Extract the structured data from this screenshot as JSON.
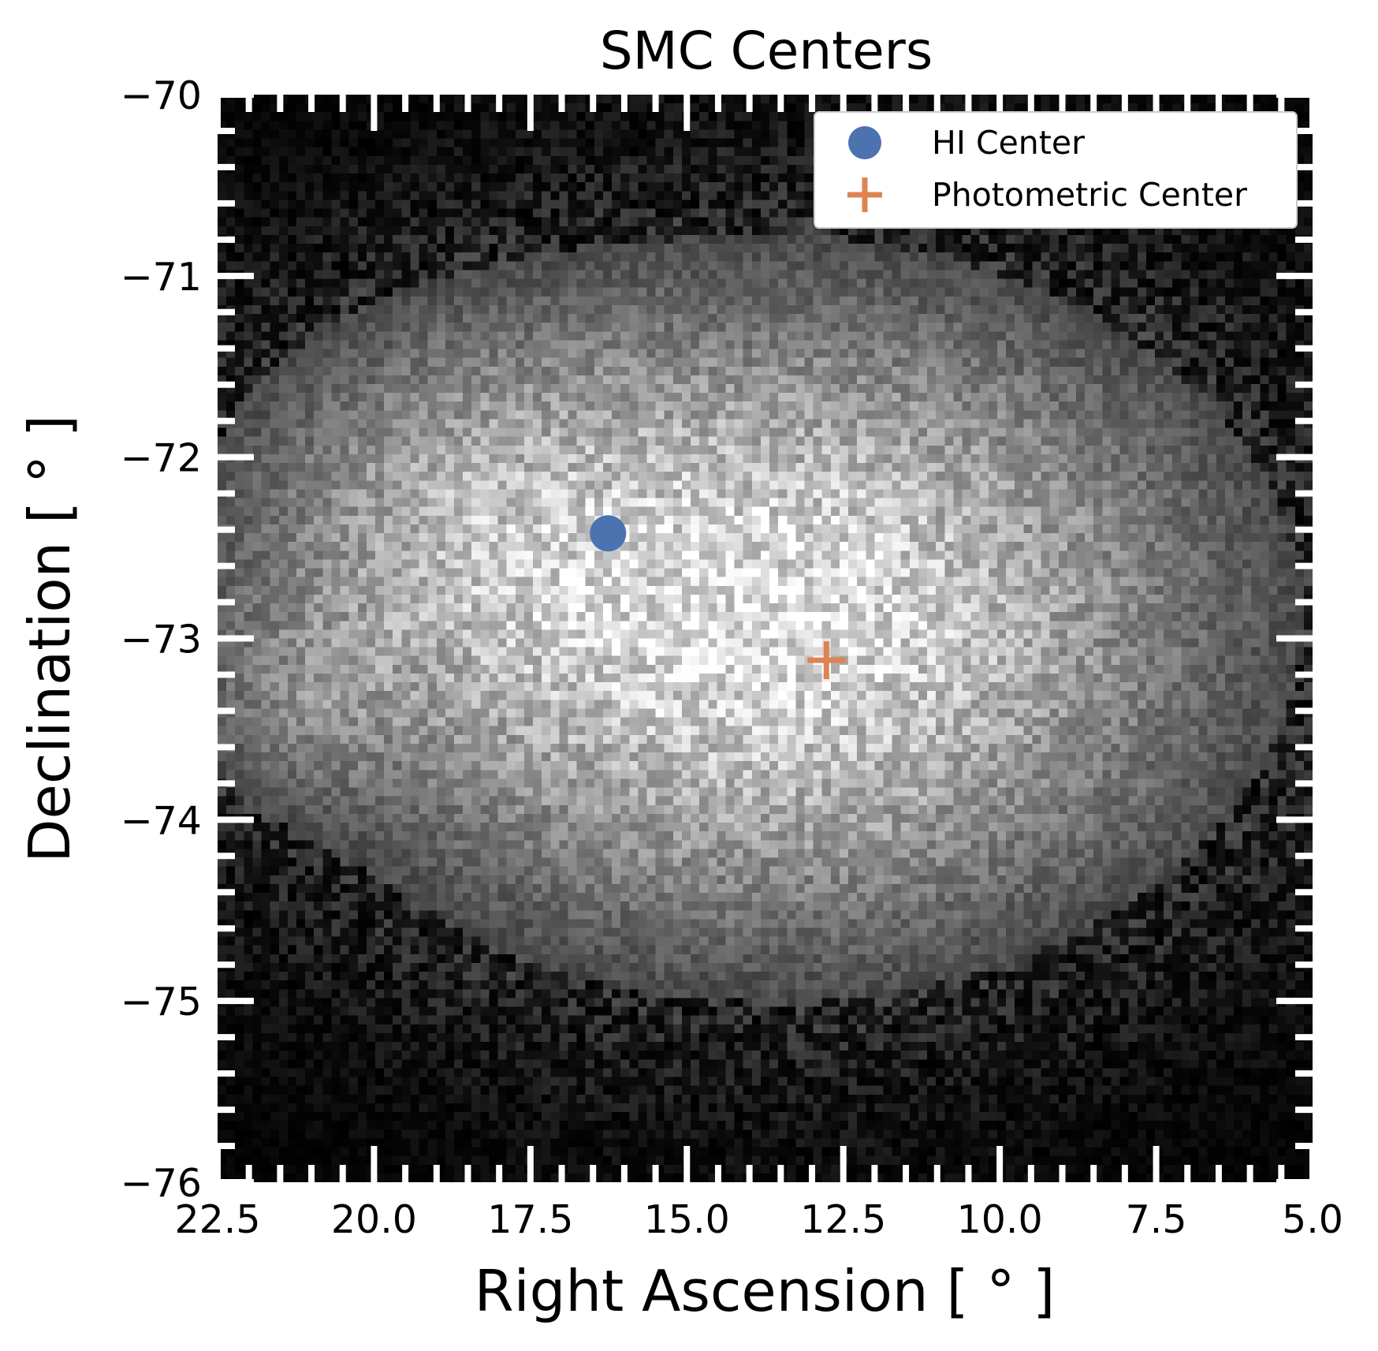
{
  "chart_data": {
    "type": "heatmap",
    "title": "SMC Centers",
    "xlabel": "Right Ascension [$^\\circ$]",
    "xlabel_display": "Right Ascension [ ° ]",
    "ylabel_display": "Declination [ ° ]",
    "xlim": [
      22.5,
      5.0
    ],
    "ylim": [
      -76,
      -70
    ],
    "x_ticks": [
      "22.5",
      "20.0",
      "17.5",
      "15.0",
      "12.5",
      "10.0",
      "7.5",
      "5.0"
    ],
    "x_tick_values": [
      22.5,
      20.0,
      17.5,
      15.0,
      12.5,
      10.0,
      7.5,
      5.0
    ],
    "y_ticks": [
      "−70",
      "−71",
      "−72",
      "−73",
      "−74",
      "−75",
      "−76"
    ],
    "y_tick_values": [
      -70,
      -71,
      -72,
      -73,
      -74,
      -75,
      -76
    ],
    "colormap": "gray",
    "points": [
      {
        "name": "HI Center",
        "ra": 16.26,
        "dec": -72.42,
        "marker": "circle",
        "color": "#4c72b0"
      },
      {
        "name": "Photometric Center",
        "ra": 12.77,
        "dec": -73.12,
        "marker": "plus",
        "color": "#dd8452"
      }
    ],
    "legend": {
      "placement": "top-right",
      "entries": [
        "HI Center",
        "Photometric Center"
      ]
    }
  }
}
